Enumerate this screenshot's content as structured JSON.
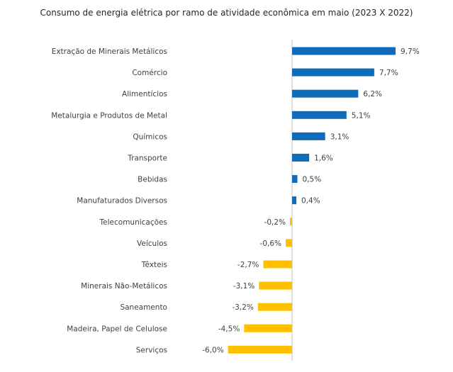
{
  "chart_data": {
    "type": "bar",
    "orientation": "horizontal",
    "title": "Consumo de energia elétrica por ramo de atividade econômica em maio (2023 X 2022)",
    "categories": [
      "Extração de Minerais Metálicos",
      "Comércio",
      "Alimentícios",
      "Metalurgia e Produtos de Metal",
      "Químicos",
      "Transporte",
      "Bebidas",
      "Manufaturados Diversos",
      "Telecomunicações",
      "Veículos",
      "Têxteis",
      "Minerais Não-Metálicos",
      "Saneamento",
      "Madeira, Papel de Celulose",
      "Serviços"
    ],
    "values": [
      9.7,
      7.7,
      6.2,
      5.1,
      3.1,
      1.6,
      0.5,
      0.4,
      -0.2,
      -0.6,
      -2.7,
      -3.1,
      -3.2,
      -4.5,
      -6.0
    ],
    "value_labels": [
      "9,7%",
      "7,7%",
      "6,2%",
      "5,1%",
      "3,1%",
      "1,6%",
      "0,5%",
      "0,4%",
      "-0,2%",
      "-0,6%",
      "-2,7%",
      "-3,1%",
      "-3,2%",
      "-4,5%",
      "-6,0%"
    ],
    "positive_color": "#0f6cbd",
    "negative_color": "#ffc000",
    "axis_color": "#bfbfbf",
    "grid": false,
    "legend": "none"
  }
}
